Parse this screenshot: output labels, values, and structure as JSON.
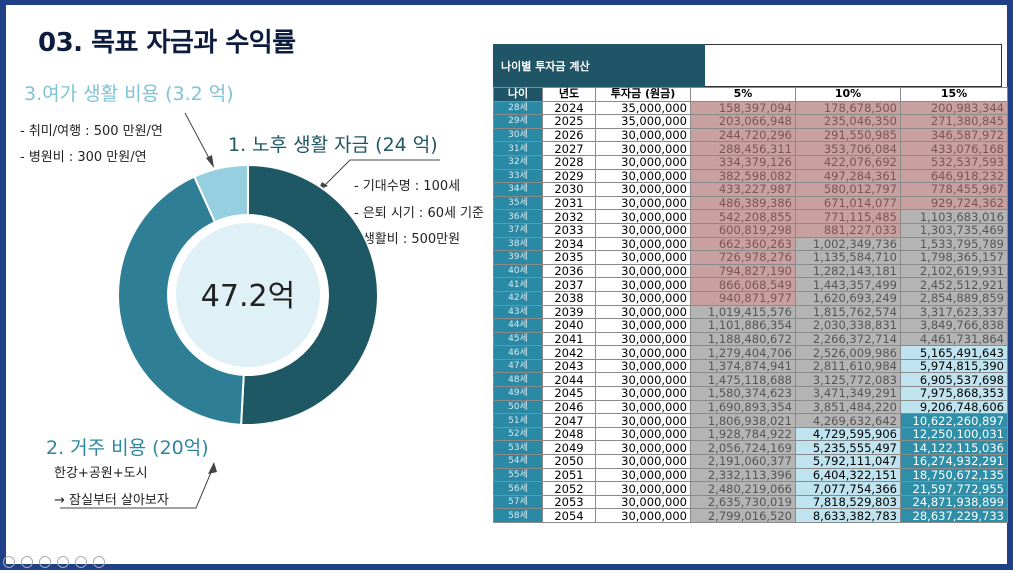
{
  "title": "03. 목표 자금과 수익률",
  "donut": {
    "center_text": "47.2억",
    "segments": [
      {
        "name": "노후 생활 자금",
        "value": 24,
        "color": "#1e5865"
      },
      {
        "name": "거주 비용",
        "value": 20,
        "color": "#2e7f95"
      },
      {
        "name": "여가 생활 비용",
        "value": 3.2,
        "color": "#96cfe0"
      }
    ]
  },
  "labels": {
    "leisure_title": "3.여가 생활 비용 (3.2 억)",
    "leisure_notes": [
      "- 취미/여행 : 500 만원/연",
      "- 병원비 : 300 만원/연"
    ],
    "retire_title": "1. 노후 생활 자금 (24 억)",
    "retire_notes": [
      "- 기대수명 : 100세",
      "- 은퇴 시기 : 60세 기준",
      "- 생활비 :  500만원"
    ],
    "housing_title": "2. 거주 비용 (20억)",
    "housing_notes": [
      "한강+공원+도시",
      "→ 잠실부터 살아보자"
    ]
  },
  "colors": {
    "leisure": "#7ec3d8",
    "retire": "#1e5865",
    "housing": "#2e86a0"
  },
  "table": {
    "caption": "나이별 투자금 계산",
    "headers": [
      "나이",
      "년도",
      "투자금 (원금)",
      "5%",
      "10%",
      "15%"
    ],
    "rows": [
      [
        "28세",
        "2024",
        "35,000,000",
        "158,397,094",
        "178,678,500",
        "200,983,344"
      ],
      [
        "29세",
        "2025",
        "35,000,000",
        "203,066,948",
        "235,046,350",
        "271,380,845"
      ],
      [
        "30세",
        "2026",
        "30,000,000",
        "244,720,296",
        "291,550,985",
        "346,587,972"
      ],
      [
        "31세",
        "2027",
        "30,000,000",
        "288,456,311",
        "353,706,084",
        "433,076,168"
      ],
      [
        "32세",
        "2028",
        "30,000,000",
        "334,379,126",
        "422,076,692",
        "532,537,593"
      ],
      [
        "33세",
        "2029",
        "30,000,000",
        "382,598,082",
        "497,284,361",
        "646,918,232"
      ],
      [
        "34세",
        "2030",
        "30,000,000",
        "433,227,987",
        "580,012,797",
        "778,455,967"
      ],
      [
        "35세",
        "2031",
        "30,000,000",
        "486,389,386",
        "671,014,077",
        "929,724,362"
      ],
      [
        "36세",
        "2032",
        "30,000,000",
        "542,208,855",
        "771,115,485",
        "1,103,683,016"
      ],
      [
        "37세",
        "2033",
        "30,000,000",
        "600,819,298",
        "881,227,033",
        "1,303,735,469"
      ],
      [
        "38세",
        "2034",
        "30,000,000",
        "662,360,263",
        "1,002,349,736",
        "1,533,795,789"
      ],
      [
        "39세",
        "2035",
        "30,000,000",
        "726,978,276",
        "1,135,584,710",
        "1,798,365,157"
      ],
      [
        "40세",
        "2036",
        "30,000,000",
        "794,827,190",
        "1,282,143,181",
        "2,102,619,931"
      ],
      [
        "41세",
        "2037",
        "30,000,000",
        "866,068,549",
        "1,443,357,499",
        "2,452,512,921"
      ],
      [
        "42세",
        "2038",
        "30,000,000",
        "940,871,977",
        "1,620,693,249",
        "2,854,889,859"
      ],
      [
        "43세",
        "2039",
        "30,000,000",
        "1,019,415,576",
        "1,815,762,574",
        "3,317,623,337"
      ],
      [
        "44세",
        "2040",
        "30,000,000",
        "1,101,886,354",
        "2,030,338,831",
        "3,849,766,838"
      ],
      [
        "45세",
        "2041",
        "30,000,000",
        "1,188,480,672",
        "2,266,372,714",
        "4,461,731,864"
      ],
      [
        "46세",
        "2042",
        "30,000,000",
        "1,279,404,706",
        "2,526,009,986",
        "5,165,491,643"
      ],
      [
        "47세",
        "2043",
        "30,000,000",
        "1,374,874,941",
        "2,811,610,984",
        "5,974,815,390"
      ],
      [
        "48세",
        "2044",
        "30,000,000",
        "1,475,118,688",
        "3,125,772,083",
        "6,905,537,698"
      ],
      [
        "49세",
        "2045",
        "30,000,000",
        "1,580,374,623",
        "3,471,349,291",
        "7,975,868,353"
      ],
      [
        "50세",
        "2046",
        "30,000,000",
        "1,690,893,354",
        "3,851,484,220",
        "9,206,748,606"
      ],
      [
        "51세",
        "2047",
        "30,000,000",
        "1,806,938,021",
        "4,269,632,642",
        "10,622,260,897"
      ],
      [
        "52세",
        "2048",
        "30,000,000",
        "1,928,784,922",
        "4,729,595,906",
        "12,250,100,031"
      ],
      [
        "53세",
        "2049",
        "30,000,000",
        "2,056,724,169",
        "5,235,555,497",
        "14,122,115,036"
      ],
      [
        "54세",
        "2050",
        "30,000,000",
        "2,191,060,377",
        "5,792,111,047",
        "16,274,932,291"
      ],
      [
        "55세",
        "2051",
        "30,000,000",
        "2,332,113,396",
        "6,404,322,151",
        "18,750,672,135"
      ],
      [
        "56세",
        "2052",
        "30,000,000",
        "2,480,219,066",
        "7,077,754,366",
        "21,597,772,955"
      ],
      [
        "57세",
        "2053",
        "30,000,000",
        "2,635,730,019",
        "7,818,529,803",
        "24,871,938,899"
      ],
      [
        "58세",
        "2054",
        "30,000,000",
        "2,799,016,520",
        "8,633,382,783",
        "28,637,229,733"
      ]
    ],
    "colors": {
      "age_bg": "#2a8aa6",
      "header_bg": "#1f5566",
      "red": "#c9a0a0",
      "gray": "#b4b4b4",
      "teal_light": "#bfe3ef",
      "teal_dark": "#2f8ea8"
    }
  }
}
